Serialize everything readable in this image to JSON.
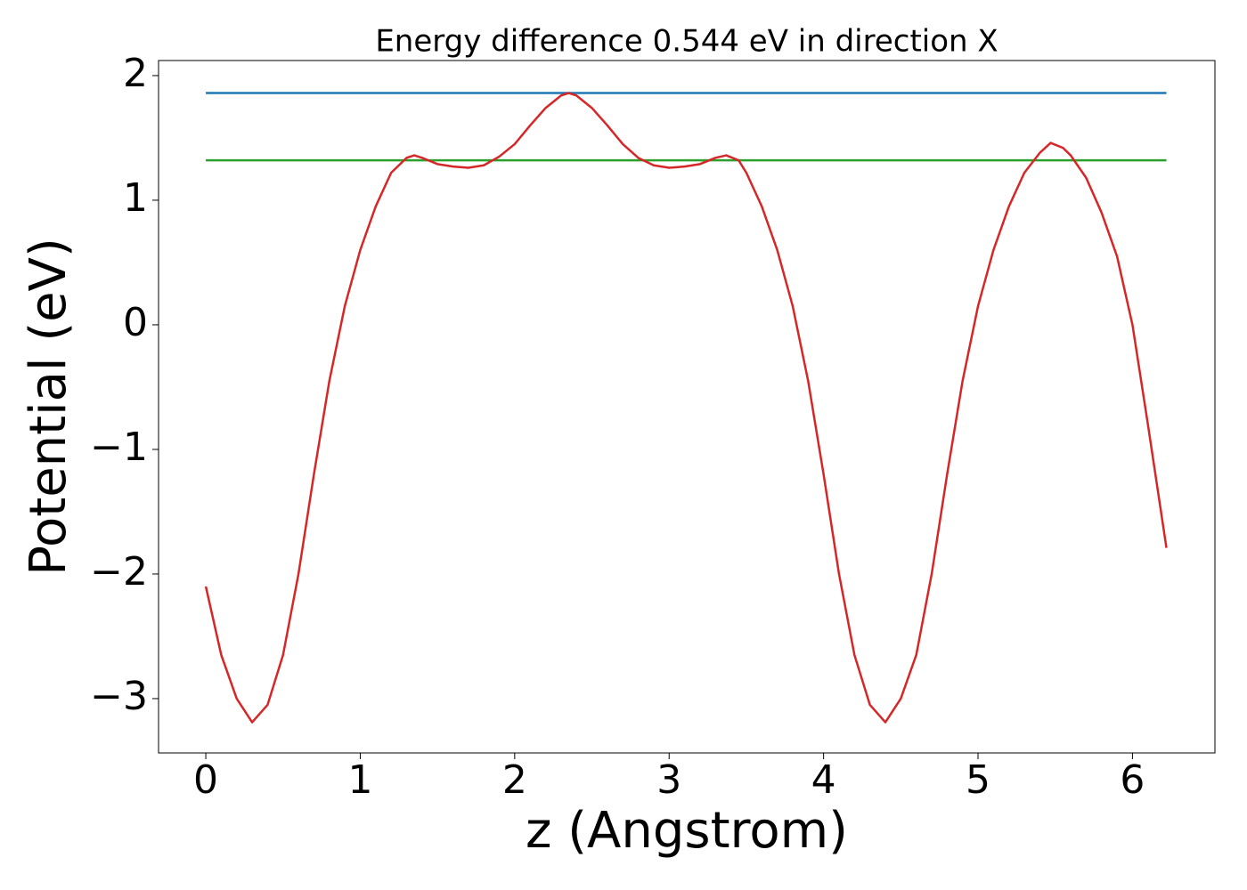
{
  "chart_data": {
    "type": "line",
    "title": "Energy difference 0.544 eV in direction X",
    "x_label": "z (Angstrom)",
    "y_label": "Potential (eV)",
    "xlim": [
      -0.306,
      6.534
    ],
    "ylim": [
      -3.436,
      2.121
    ],
    "xticks": [
      0,
      1,
      2,
      3,
      4,
      5,
      6
    ],
    "yticks": [
      {
        "value": -3,
        "label": "−3"
      },
      {
        "value": -2,
        "label": "−2"
      },
      {
        "value": -1,
        "label": "−1"
      },
      0,
      1,
      2
    ],
    "grid": false,
    "series": [
      {
        "color": "#1f77b4",
        "x": [
          0,
          6.22
        ],
        "values": [
          1.86,
          1.86
        ]
      },
      {
        "color": "#2ca02c",
        "x": [
          0,
          6.22
        ],
        "values": [
          1.32,
          1.32
        ]
      },
      {
        "color": "#d62728",
        "x": [
          0,
          0.1,
          0.2,
          0.3,
          0.4,
          0.5,
          0.6,
          0.7,
          0.8,
          0.9,
          1.0,
          1.1,
          1.2,
          1.3,
          1.35,
          1.4,
          1.5,
          1.6,
          1.7,
          1.8,
          1.9,
          2.0,
          2.1,
          2.2,
          2.3,
          2.35,
          2.4,
          2.5,
          2.6,
          2.7,
          2.8,
          2.9,
          3.0,
          3.1,
          3.2,
          3.3,
          3.37,
          3.45,
          3.5,
          3.6,
          3.7,
          3.8,
          3.9,
          4.0,
          4.1,
          4.2,
          4.3,
          4.4,
          4.5,
          4.6,
          4.7,
          4.8,
          4.9,
          5.0,
          5.1,
          5.2,
          5.3,
          5.4,
          5.47,
          5.55,
          5.6,
          5.7,
          5.8,
          5.9,
          6.0,
          6.1,
          6.22
        ],
        "values": [
          -2.1,
          -2.65,
          -3.0,
          -3.19,
          -3.05,
          -2.65,
          -2.0,
          -1.2,
          -0.45,
          0.15,
          0.6,
          0.95,
          1.22,
          1.34,
          1.36,
          1.34,
          1.29,
          1.27,
          1.26,
          1.28,
          1.35,
          1.45,
          1.6,
          1.74,
          1.84,
          1.86,
          1.84,
          1.74,
          1.6,
          1.45,
          1.34,
          1.28,
          1.26,
          1.27,
          1.29,
          1.34,
          1.36,
          1.32,
          1.22,
          0.95,
          0.6,
          0.15,
          -0.45,
          -1.2,
          -2.0,
          -2.65,
          -3.05,
          -3.19,
          -3.0,
          -2.65,
          -2.0,
          -1.2,
          -0.45,
          0.15,
          0.6,
          0.95,
          1.22,
          1.38,
          1.46,
          1.42,
          1.36,
          1.18,
          0.9,
          0.55,
          0.0,
          -0.8,
          -1.79
        ]
      }
    ]
  }
}
